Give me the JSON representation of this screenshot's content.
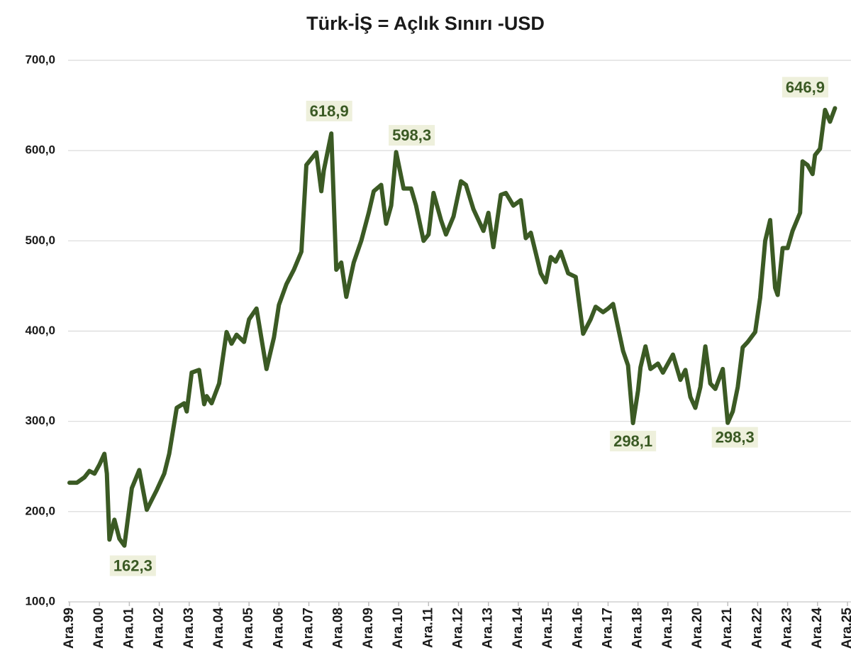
{
  "chart_data": {
    "type": "line",
    "title": "Türk-İŞ = Açlık Sınırı -USD",
    "x": [
      "1999-12",
      "2000-03",
      "2000-06",
      "2000-08",
      "2000-10",
      "2000-12",
      "2001-02",
      "2001-03",
      "2001-04",
      "2001-06",
      "2001-08",
      "2001-10",
      "2002-01",
      "2002-04",
      "2002-07",
      "2002-09",
      "2002-11",
      "2003-02",
      "2003-04",
      "2003-07",
      "2003-10",
      "2003-11",
      "2004-01",
      "2004-04",
      "2004-06",
      "2004-07",
      "2004-09",
      "2004-12",
      "2005-03",
      "2005-05",
      "2005-07",
      "2005-10",
      "2005-12",
      "2006-03",
      "2006-07",
      "2006-10",
      "2006-12",
      "2007-03",
      "2007-06",
      "2007-09",
      "2007-11",
      "2008-03",
      "2008-05",
      "2008-06",
      "2008-09",
      "2008-11",
      "2009-01",
      "2009-03",
      "2009-06",
      "2009-09",
      "2009-12",
      "2010-02",
      "2010-05",
      "2010-07",
      "2010-09",
      "2010-11",
      "2011-02",
      "2011-05",
      "2011-07",
      "2011-10",
      "2011-12",
      "2012-02",
      "2012-05",
      "2012-07",
      "2012-10",
      "2013-01",
      "2013-03",
      "2013-06",
      "2013-10",
      "2013-12",
      "2014-02",
      "2014-05",
      "2014-07",
      "2014-10",
      "2015-01",
      "2015-03",
      "2015-05",
      "2015-09",
      "2015-11",
      "2016-01",
      "2016-03",
      "2016-05",
      "2016-08",
      "2016-11",
      "2017-02",
      "2017-05",
      "2017-07",
      "2017-10",
      "2017-12",
      "2018-02",
      "2018-06",
      "2018-08",
      "2018-10",
      "2018-12",
      "2019-01",
      "2019-03",
      "2019-05",
      "2019-08",
      "2019-10",
      "2020-02",
      "2020-05",
      "2020-07",
      "2020-09",
      "2020-11",
      "2021-01",
      "2021-03",
      "2021-05",
      "2021-07",
      "2021-10",
      "2021-12",
      "2022-02",
      "2022-04",
      "2022-06",
      "2022-08",
      "2022-11",
      "2023-01",
      "2023-03",
      "2023-05",
      "2023-07",
      "2023-08",
      "2023-10",
      "2023-12",
      "2024-02",
      "2024-05",
      "2024-06",
      "2024-08",
      "2024-10",
      "2024-11",
      "2025-01",
      "2025-03",
      "2025-05",
      "2025-07"
    ],
    "series": [
      {
        "color": "#3b5a24",
        "values": [
          232,
          232,
          238,
          245,
          242,
          252,
          264,
          242,
          169,
          191,
          170,
          162.3,
          226,
          246,
          202,
          213,
          224,
          242,
          264,
          315,
          320,
          311,
          354,
          357,
          319,
          328,
          320,
          342,
          399,
          386,
          396,
          388,
          413,
          425,
          358,
          393,
          429,
          452,
          468,
          488,
          584,
          598,
          555,
          578,
          618.9,
          468,
          476,
          438,
          476,
          500,
          531,
          555,
          562,
          519,
          539,
          598.3,
          558,
          558,
          539,
          500,
          507,
          553,
          523,
          507,
          527,
          566,
          562,
          535,
          511,
          531,
          493,
          551,
          553,
          539,
          545,
          503,
          509,
          464,
          454,
          482,
          477,
          488,
          464,
          460,
          397,
          413,
          427,
          421,
          425,
          430,
          378,
          362,
          298.1,
          334,
          360,
          383,
          358,
          364,
          354,
          374,
          346,
          357,
          327,
          315,
          338,
          383,
          342,
          336,
          358,
          298.3,
          311,
          338,
          382,
          388,
          399,
          437,
          500,
          523,
          448,
          440,
          492,
          492,
          511,
          531,
          588,
          584,
          574,
          595,
          602,
          645,
          632,
          646.9
        ]
      }
    ],
    "annotations": [
      {
        "x": "2001-10",
        "label": "162,3"
      },
      {
        "x": "2008-09",
        "label": "618,9"
      },
      {
        "x": "2010-11",
        "label": "598,3"
      },
      {
        "x": "2018-10",
        "label": "298,1"
      },
      {
        "x": "2021-12",
        "label": "298,3"
      },
      {
        "x": "2025-07",
        "label": "646,9"
      }
    ],
    "xlim": [
      "1999-12",
      "2025-12"
    ],
    "xticks": [
      {
        "value": "1999-12",
        "label": "Ara.99"
      },
      {
        "value": "2000-12",
        "label": "Ara.00"
      },
      {
        "value": "2001-12",
        "label": "Ara.01"
      },
      {
        "value": "2002-12",
        "label": "Ara.02"
      },
      {
        "value": "2003-12",
        "label": "Ara.03"
      },
      {
        "value": "2004-12",
        "label": "Ara.04"
      },
      {
        "value": "2005-12",
        "label": "Ara.05"
      },
      {
        "value": "2006-12",
        "label": "Ara.06"
      },
      {
        "value": "2007-12",
        "label": "Ara.07"
      },
      {
        "value": "2008-12",
        "label": "Ara.08"
      },
      {
        "value": "2009-12",
        "label": "Ara.09"
      },
      {
        "value": "2010-12",
        "label": "Ara.10"
      },
      {
        "value": "2011-12",
        "label": "Ara.11"
      },
      {
        "value": "2012-12",
        "label": "Ara.12"
      },
      {
        "value": "2013-12",
        "label": "Ara.13"
      },
      {
        "value": "2014-12",
        "label": "Ara.14"
      },
      {
        "value": "2015-12",
        "label": "Ara.15"
      },
      {
        "value": "2016-12",
        "label": "Ara.16"
      },
      {
        "value": "2017-12",
        "label": "Ara.17"
      },
      {
        "value": "2018-12",
        "label": "Ara.18"
      },
      {
        "value": "2019-12",
        "label": "Ara.19"
      },
      {
        "value": "2020-12",
        "label": "Ara.20"
      },
      {
        "value": "2021-12",
        "label": "Ara.21"
      },
      {
        "value": "2022-12",
        "label": "Ara.22"
      },
      {
        "value": "2023-12",
        "label": "Ara.23"
      },
      {
        "value": "2024-12",
        "label": "Ara.24"
      },
      {
        "value": "2025-12",
        "label": "Ara.25"
      }
    ],
    "ylim": [
      100,
      700
    ],
    "yticks": [
      {
        "value": 100,
        "label": "100,0"
      },
      {
        "value": 200,
        "label": "200,0"
      },
      {
        "value": 300,
        "label": "300,0"
      },
      {
        "value": 400,
        "label": "400,0"
      },
      {
        "value": 500,
        "label": "500,0"
      },
      {
        "value": 600,
        "label": "600,0"
      },
      {
        "value": 700,
        "label": "700,0"
      }
    ],
    "grid": true
  }
}
